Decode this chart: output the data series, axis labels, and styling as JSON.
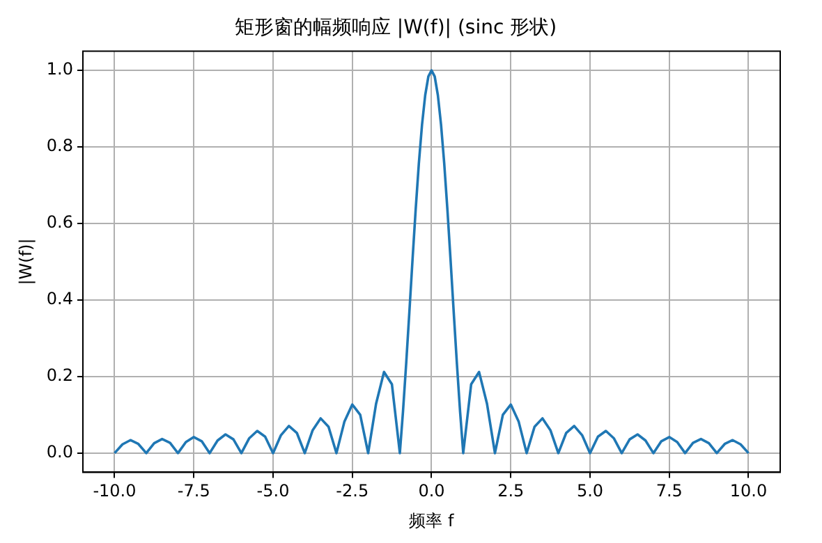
{
  "chart_data": {
    "type": "line",
    "title": "矩形窗的幅频响应 |W(f)| (sinc 形状)",
    "xlabel": "频率 f",
    "ylabel": "|W(f)|",
    "x": [
      -10,
      -9.75,
      -9.5,
      -9.25,
      -9,
      -8.75,
      -8.5,
      -8.25,
      -8,
      -7.75,
      -7.5,
      -7.25,
      -7,
      -6.75,
      -6.5,
      -6.25,
      -6,
      -5.75,
      -5.5,
      -5.25,
      -5,
      -4.75,
      -4.5,
      -4.25,
      -4,
      -3.75,
      -3.5,
      -3.25,
      -3,
      -2.75,
      -2.5,
      -2.25,
      -2,
      -1.75,
      -1.5,
      -1.25,
      -1,
      -0.9,
      -0.8,
      -0.7,
      -0.6,
      -0.5,
      -0.4,
      -0.3,
      -0.2,
      -0.1,
      0,
      0.1,
      0.2,
      0.3,
      0.4,
      0.5,
      0.6,
      0.7,
      0.8,
      0.9,
      1,
      1.25,
      1.5,
      1.75,
      2,
      2.25,
      2.5,
      2.75,
      3,
      3.25,
      3.5,
      3.75,
      4,
      4.25,
      4.5,
      4.75,
      5,
      5.25,
      5.5,
      5.75,
      6,
      6.25,
      6.5,
      6.75,
      7,
      7.25,
      7.5,
      7.75,
      8,
      8.25,
      8.5,
      8.75,
      9,
      9.25,
      9.5,
      9.75,
      10
    ],
    "series": [
      {
        "color": "#1f77b4",
        "values": [
          0,
          0.023,
          0.034,
          0.024,
          0,
          0.026,
          0.037,
          0.027,
          0,
          0.029,
          0.042,
          0.031,
          0,
          0.033,
          0.049,
          0.036,
          0,
          0.039,
          0.058,
          0.043,
          0,
          0.047,
          0.071,
          0.053,
          0,
          0.06,
          0.091,
          0.069,
          0,
          0.082,
          0.127,
          0.1,
          0,
          0.129,
          0.212,
          0.18,
          0,
          0.109,
          0.234,
          0.368,
          0.505,
          0.637,
          0.757,
          0.858,
          0.935,
          0.984,
          1,
          0.984,
          0.935,
          0.858,
          0.757,
          0.637,
          0.505,
          0.368,
          0.234,
          0.109,
          0,
          0.18,
          0.212,
          0.129,
          0,
          0.1,
          0.127,
          0.082,
          0,
          0.069,
          0.091,
          0.06,
          0,
          0.053,
          0.071,
          0.047,
          0,
          0.043,
          0.058,
          0.039,
          0,
          0.036,
          0.049,
          0.033,
          0,
          0.031,
          0.042,
          0.029,
          0,
          0.027,
          0.037,
          0.026,
          0,
          0.024,
          0.034,
          0.023,
          0
        ]
      }
    ],
    "xlim": [
      -11,
      11
    ],
    "xticks": [
      {
        "value": -10,
        "label": "-10.0"
      },
      {
        "value": -7.5,
        "label": "-7.5"
      },
      {
        "value": -5,
        "label": "-5.0"
      },
      {
        "value": -2.5,
        "label": "-2.5"
      },
      {
        "value": 0,
        "label": "0.0"
      },
      {
        "value": 2.5,
        "label": "2.5"
      },
      {
        "value": 5,
        "label": "5.0"
      },
      {
        "value": 7.5,
        "label": "7.5"
      },
      {
        "value": 10,
        "label": "10.0"
      }
    ],
    "ylim": [
      -0.05,
      1.05
    ],
    "yticks": [
      {
        "value": 0,
        "label": "0.0"
      },
      {
        "value": 0.2,
        "label": "0.2"
      },
      {
        "value": 0.4,
        "label": "0.4"
      },
      {
        "value": 0.6,
        "label": "0.6"
      },
      {
        "value": 0.8,
        "label": "0.8"
      },
      {
        "value": 1,
        "label": "1.0"
      }
    ],
    "grid": true,
    "legend": false
  }
}
